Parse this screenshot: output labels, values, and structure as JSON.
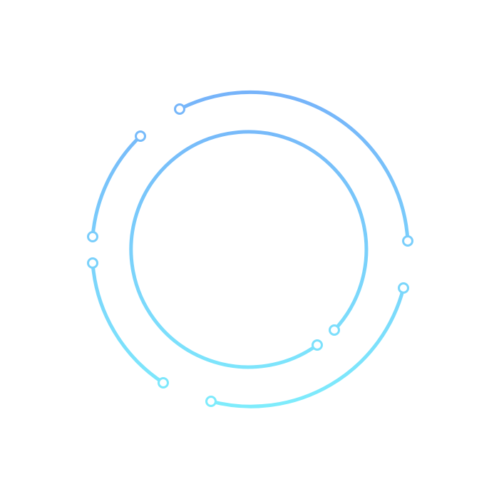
{
  "graphic": {
    "colors": {
      "top": "#76b3fa",
      "bottom": "#7eecfc",
      "node_fill": "#ffffff"
    },
    "icon": "concentric-circuit-rings-icon"
  }
}
